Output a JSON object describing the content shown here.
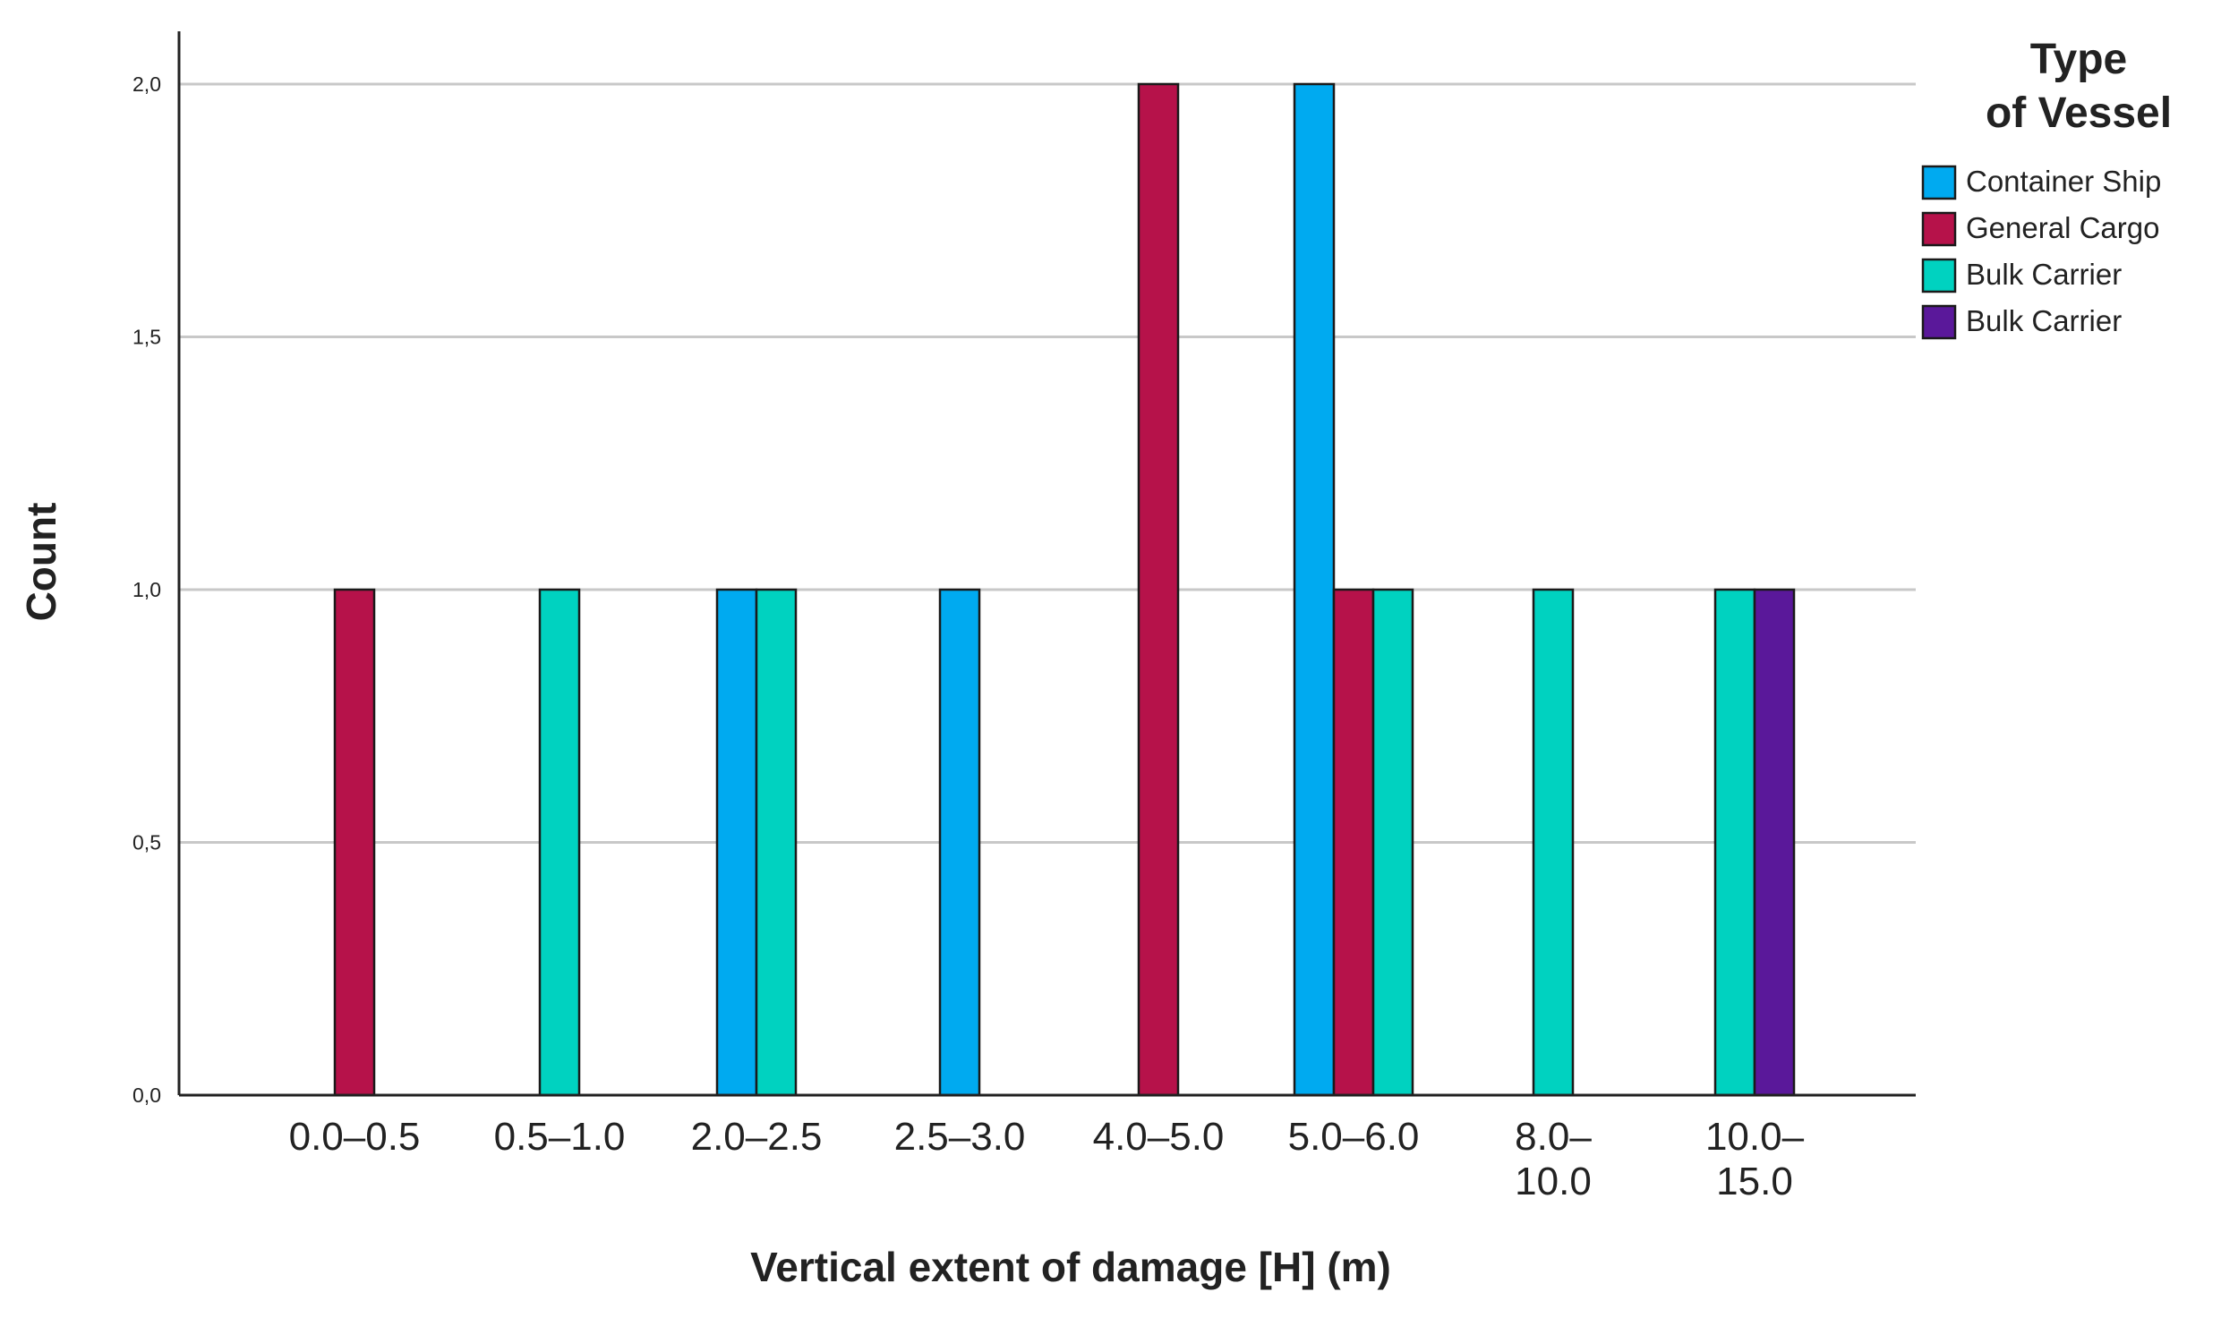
{
  "chart_data": {
    "type": "bar",
    "title": "",
    "xlabel": "Vertical extent of damage  [H] (m)",
    "ylabel": "Count",
    "ylim": [
      0,
      2
    ],
    "yticks": [
      "0,0",
      "0,5",
      "1,0",
      "1,5",
      "2,0"
    ],
    "grid": true,
    "legend_position": "top-right",
    "legend_title": [
      "Type",
      "of Vessel"
    ],
    "categories": [
      [
        "0.0–0.5"
      ],
      [
        "0.5–1.0"
      ],
      [
        "2.0–2.5"
      ],
      [
        "2.5–3.0"
      ],
      [
        "4.0–5.0"
      ],
      [
        "5.0–6.0"
      ],
      [
        "8.0–",
        "10.0"
      ],
      [
        "10.0–",
        "15.0"
      ]
    ],
    "series": [
      {
        "name": "Container Ship",
        "color": "#00AAF0",
        "values": [
          0,
          0,
          1,
          1,
          0,
          2,
          0,
          0
        ]
      },
      {
        "name": "General Cargo",
        "color": "#B6124A",
        "values": [
          1,
          0,
          0,
          0,
          2,
          1,
          0,
          0
        ]
      },
      {
        "name": "Bulk Carrier",
        "color": "#00D2C0",
        "values": [
          0,
          1,
          1,
          0,
          0,
          1,
          1,
          1
        ]
      },
      {
        "name": "Bulk Carrier",
        "color": "#5A189A",
        "values": [
          0,
          0,
          0,
          0,
          0,
          0,
          0,
          1
        ]
      }
    ]
  }
}
